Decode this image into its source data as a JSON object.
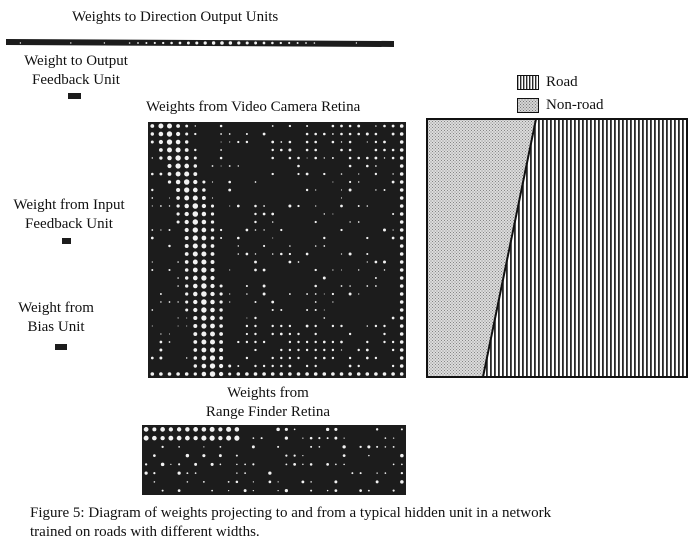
{
  "labels": {
    "direction_output": "Weights to Direction Output Units",
    "output_feedback": [
      "Weight to Output",
      "Feedback Unit"
    ],
    "video_retina": "Weights from Video Camera Retina",
    "input_feedback": [
      "Weight from Input",
      "Feedback Unit"
    ],
    "bias": [
      "Weight from",
      "Bias Unit"
    ],
    "range_finder": [
      "Weights from",
      "Range Finder Retina"
    ]
  },
  "legend": {
    "road": "Road",
    "nonroad": "Non-road"
  },
  "caption": [
    "Figure 5: Diagram of weights projecting to and from a typical hidden unit in a network",
    "trained on roads with different widths."
  ],
  "colors": {
    "ink": "#111111",
    "weight_background": "#1c1c1c",
    "positive_weight": "#f2f2f2",
    "road_hatch": "#2a2a2a",
    "nonroad_stipple": "#8a8a8a"
  }
}
